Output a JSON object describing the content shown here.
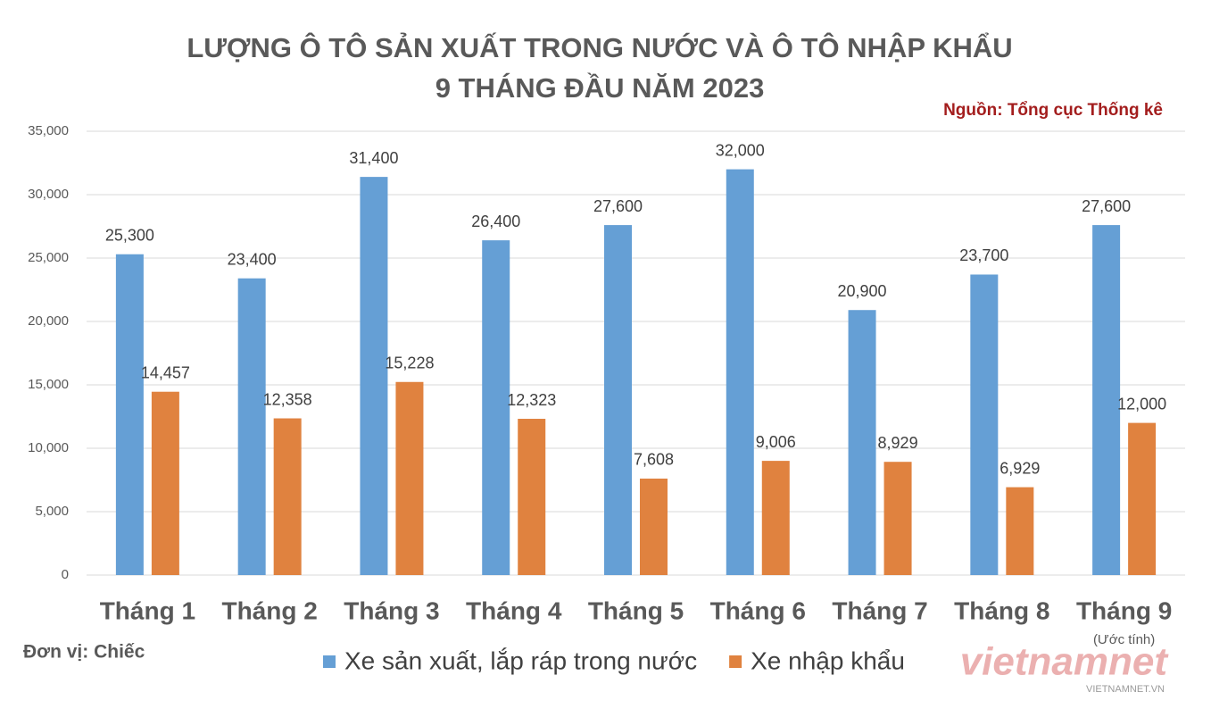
{
  "chart_data": {
    "type": "bar",
    "title": [
      "LƯỢNG Ô TÔ SẢN XUẤT TRONG NƯỚC VÀ Ô TÔ NHẬP KHẨU",
      "9 THÁNG ĐẦU NĂM 2023"
    ],
    "source": "Nguồn: Tổng cục Thống kê",
    "unit_note": "Đơn vị: Chiếc",
    "categories": [
      "Tháng 1",
      "Tháng 2",
      "Tháng 3",
      "Tháng 4",
      "Tháng 5",
      "Tháng 6",
      "Tháng 7",
      "Tháng 8",
      "Tháng 9"
    ],
    "category_notes": [
      null,
      null,
      null,
      null,
      null,
      null,
      null,
      null,
      "(Ước tính)"
    ],
    "series": [
      {
        "name": "Xe sản xuất, lắp ráp trong nước",
        "color": "#659fd5",
        "values": [
          25300,
          23400,
          31400,
          26400,
          27600,
          32000,
          20900,
          23700,
          27600
        ],
        "value_labels": [
          "25,300",
          "23,400",
          "31,400",
          "26,400",
          "27,600",
          "32,000",
          "20,900",
          "23,700",
          "27,600"
        ]
      },
      {
        "name": "Xe nhập khẩu",
        "color": "#e0823f",
        "values": [
          14457,
          12358,
          15228,
          12323,
          7608,
          9006,
          8929,
          6929,
          12000
        ],
        "value_labels": [
          "14,457",
          "12,358",
          "15,228",
          "12,323",
          "7,608",
          "9,006",
          "8,929",
          "6,929",
          "12,000"
        ]
      }
    ],
    "ylim": [
      0,
      35000
    ],
    "yticks": [
      0,
      {
        "value": 5000,
        "label": "5,000"
      },
      {
        "value": 10000,
        "label": "10,000"
      },
      {
        "value": 15000,
        "label": "15,000"
      },
      {
        "value": 20000,
        "label": "20,000"
      },
      {
        "value": 25000,
        "label": "25,000"
      },
      {
        "value": 30000,
        "label": "30,000"
      },
      {
        "value": 35000,
        "label": "35,000"
      }
    ],
    "grid": true,
    "legend": "bottom",
    "watermark": "vietnamnet",
    "watermark_url": "VIETNAMNET.VN"
  }
}
